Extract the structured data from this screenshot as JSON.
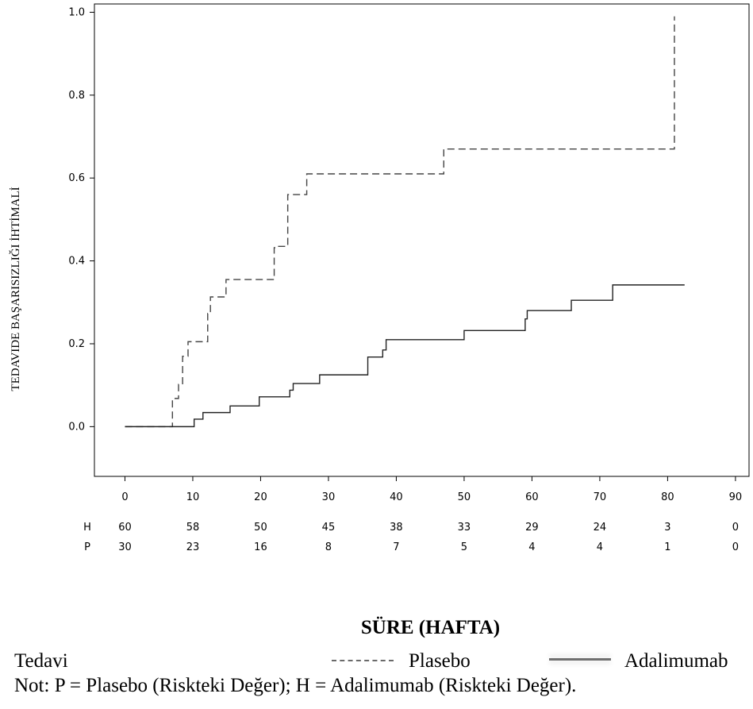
{
  "chart_data": {
    "type": "line",
    "title": "",
    "xlabel": "SÜRE (HAFTA)",
    "ylabel": "TEDAVIDE BAŞARISIZLIĞI İHTİMALİ",
    "xlim": [
      -4.5,
      92
    ],
    "ylim": [
      -0.12,
      1.02
    ],
    "x_ticks": [
      0,
      10,
      20,
      30,
      40,
      50,
      60,
      70,
      80,
      90
    ],
    "x_tick_labels": [
      "0",
      "10",
      "20",
      "30",
      "40",
      "50",
      "60",
      "70",
      "80",
      "90"
    ],
    "y_ticks": [
      0.0,
      0.2,
      0.4,
      0.6,
      0.8,
      1.0
    ],
    "y_tick_labels": [
      "0.0",
      "0.2",
      "0.4",
      "0.6",
      "0.8",
      "1.0"
    ],
    "grid": false,
    "series": [
      {
        "name": "Plasebo",
        "style": "dashed",
        "color": "#444444",
        "x": [
          0,
          7.0,
          7.9,
          8.5,
          9.3,
          12.2,
          12.6,
          14.9,
          22.0,
          22.4,
          24.0,
          26.8,
          47.0,
          81.0,
          81.0
        ],
        "y": [
          0.0,
          0.068,
          0.102,
          0.17,
          0.205,
          0.273,
          0.313,
          0.355,
          0.432,
          0.435,
          0.56,
          0.61,
          0.67,
          0.67,
          0.99
        ]
      },
      {
        "name": "Adalimumab",
        "style": "solid",
        "color": "#222222",
        "x": [
          0,
          10.2,
          11.5,
          15.5,
          19.8,
          24.3,
          24.8,
          28.7,
          35.8,
          38.0,
          38.5,
          50.0,
          59.0,
          59.3,
          65.8,
          71.9,
          82.5
        ],
        "y": [
          0.0,
          0.018,
          0.034,
          0.05,
          0.072,
          0.088,
          0.104,
          0.125,
          0.168,
          0.185,
          0.21,
          0.232,
          0.26,
          0.28,
          0.305,
          0.342,
          0.342
        ]
      }
    ],
    "risk_table": {
      "x": [
        0,
        10,
        20,
        30,
        40,
        50,
        60,
        70,
        80,
        90
      ],
      "rows": [
        {
          "label": "H",
          "values": [
            "60",
            "58",
            "50",
            "45",
            "38",
            "33",
            "29",
            "24",
            "3",
            "0"
          ]
        },
        {
          "label": "P",
          "values": [
            "30",
            "23",
            "16",
            "8",
            "7",
            "5",
            "4",
            "4",
            "1",
            "0"
          ]
        }
      ]
    }
  },
  "legend": {
    "title": "Tedavi",
    "items": [
      {
        "label": "Plasebo",
        "style": "dashed",
        "color": "#6a6a6a"
      },
      {
        "label": "Adalimumab",
        "style": "solid",
        "color": "#707070"
      }
    ]
  },
  "note": "Not: P = Plasebo (Riskteki Değer); H = Adalimumab (Riskteki Değer)."
}
